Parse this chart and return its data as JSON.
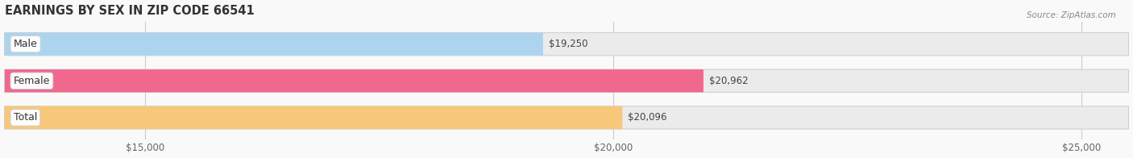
{
  "title": "EARNINGS BY SEX IN ZIP CODE 66541",
  "source": "Source: ZipAtlas.com",
  "categories": [
    "Male",
    "Female",
    "Total"
  ],
  "values": [
    19250,
    20962,
    20096
  ],
  "bar_colors": [
    "#add4ef",
    "#f0688e",
    "#f8c87a"
  ],
  "value_labels": [
    "$19,250",
    "$20,962",
    "$20,096"
  ],
  "xlim": [
    13500,
    25500
  ],
  "data_min": 13500,
  "data_max": 25500,
  "xticks": [
    15000,
    20000,
    25000
  ],
  "xticklabels": [
    "$15,000",
    "$20,000",
    "$25,000"
  ],
  "bar_height": 0.62,
  "figsize": [
    14.06,
    1.96
  ],
  "dpi": 100,
  "background_color": "#f9f9f9",
  "bar_bg_color": "#ebebeb",
  "bar_border_color": "#d0d0d0",
  "grid_color": "#cccccc",
  "label_bg_color": "#ffffff",
  "title_fontsize": 10.5,
  "tick_fontsize": 8.5,
  "label_fontsize": 9,
  "value_fontsize": 8.5
}
